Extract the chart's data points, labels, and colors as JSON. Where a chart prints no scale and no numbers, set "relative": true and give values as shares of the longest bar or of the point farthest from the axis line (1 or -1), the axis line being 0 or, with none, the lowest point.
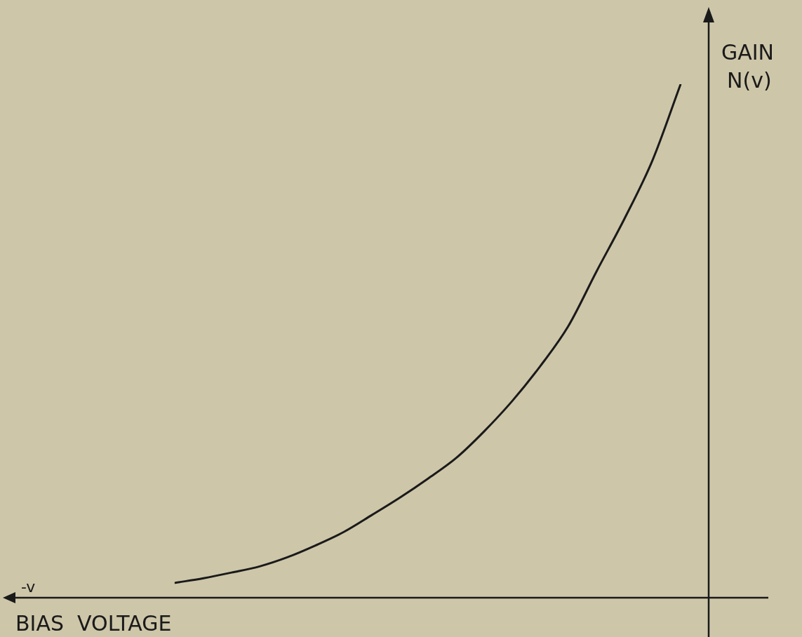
{
  "chart_data": {
    "type": "line",
    "relative": true,
    "xlabel": "BIAS VOLTAGE",
    "ylabel": "GAIN N(v)",
    "annotations": [
      "-v"
    ],
    "categories": [
      null,
      null,
      null,
      null,
      null,
      null,
      null,
      null,
      null,
      null,
      null,
      null,
      null,
      null,
      null,
      null,
      null,
      null,
      null
    ],
    "series": [
      {
        "color": "#1a1a1a",
        "values": [
          0.029,
          0.038,
          0.049,
          0.061,
          0.079,
          0.102,
          0.128,
          0.161,
          0.195,
          0.232,
          0.272,
          0.324,
          0.383,
          0.451,
          0.529,
          0.635,
          0.738,
          0.852,
          1
        ]
      }
    ],
    "marker": "none",
    "line_style": "solid",
    "legend": false
  }
}
